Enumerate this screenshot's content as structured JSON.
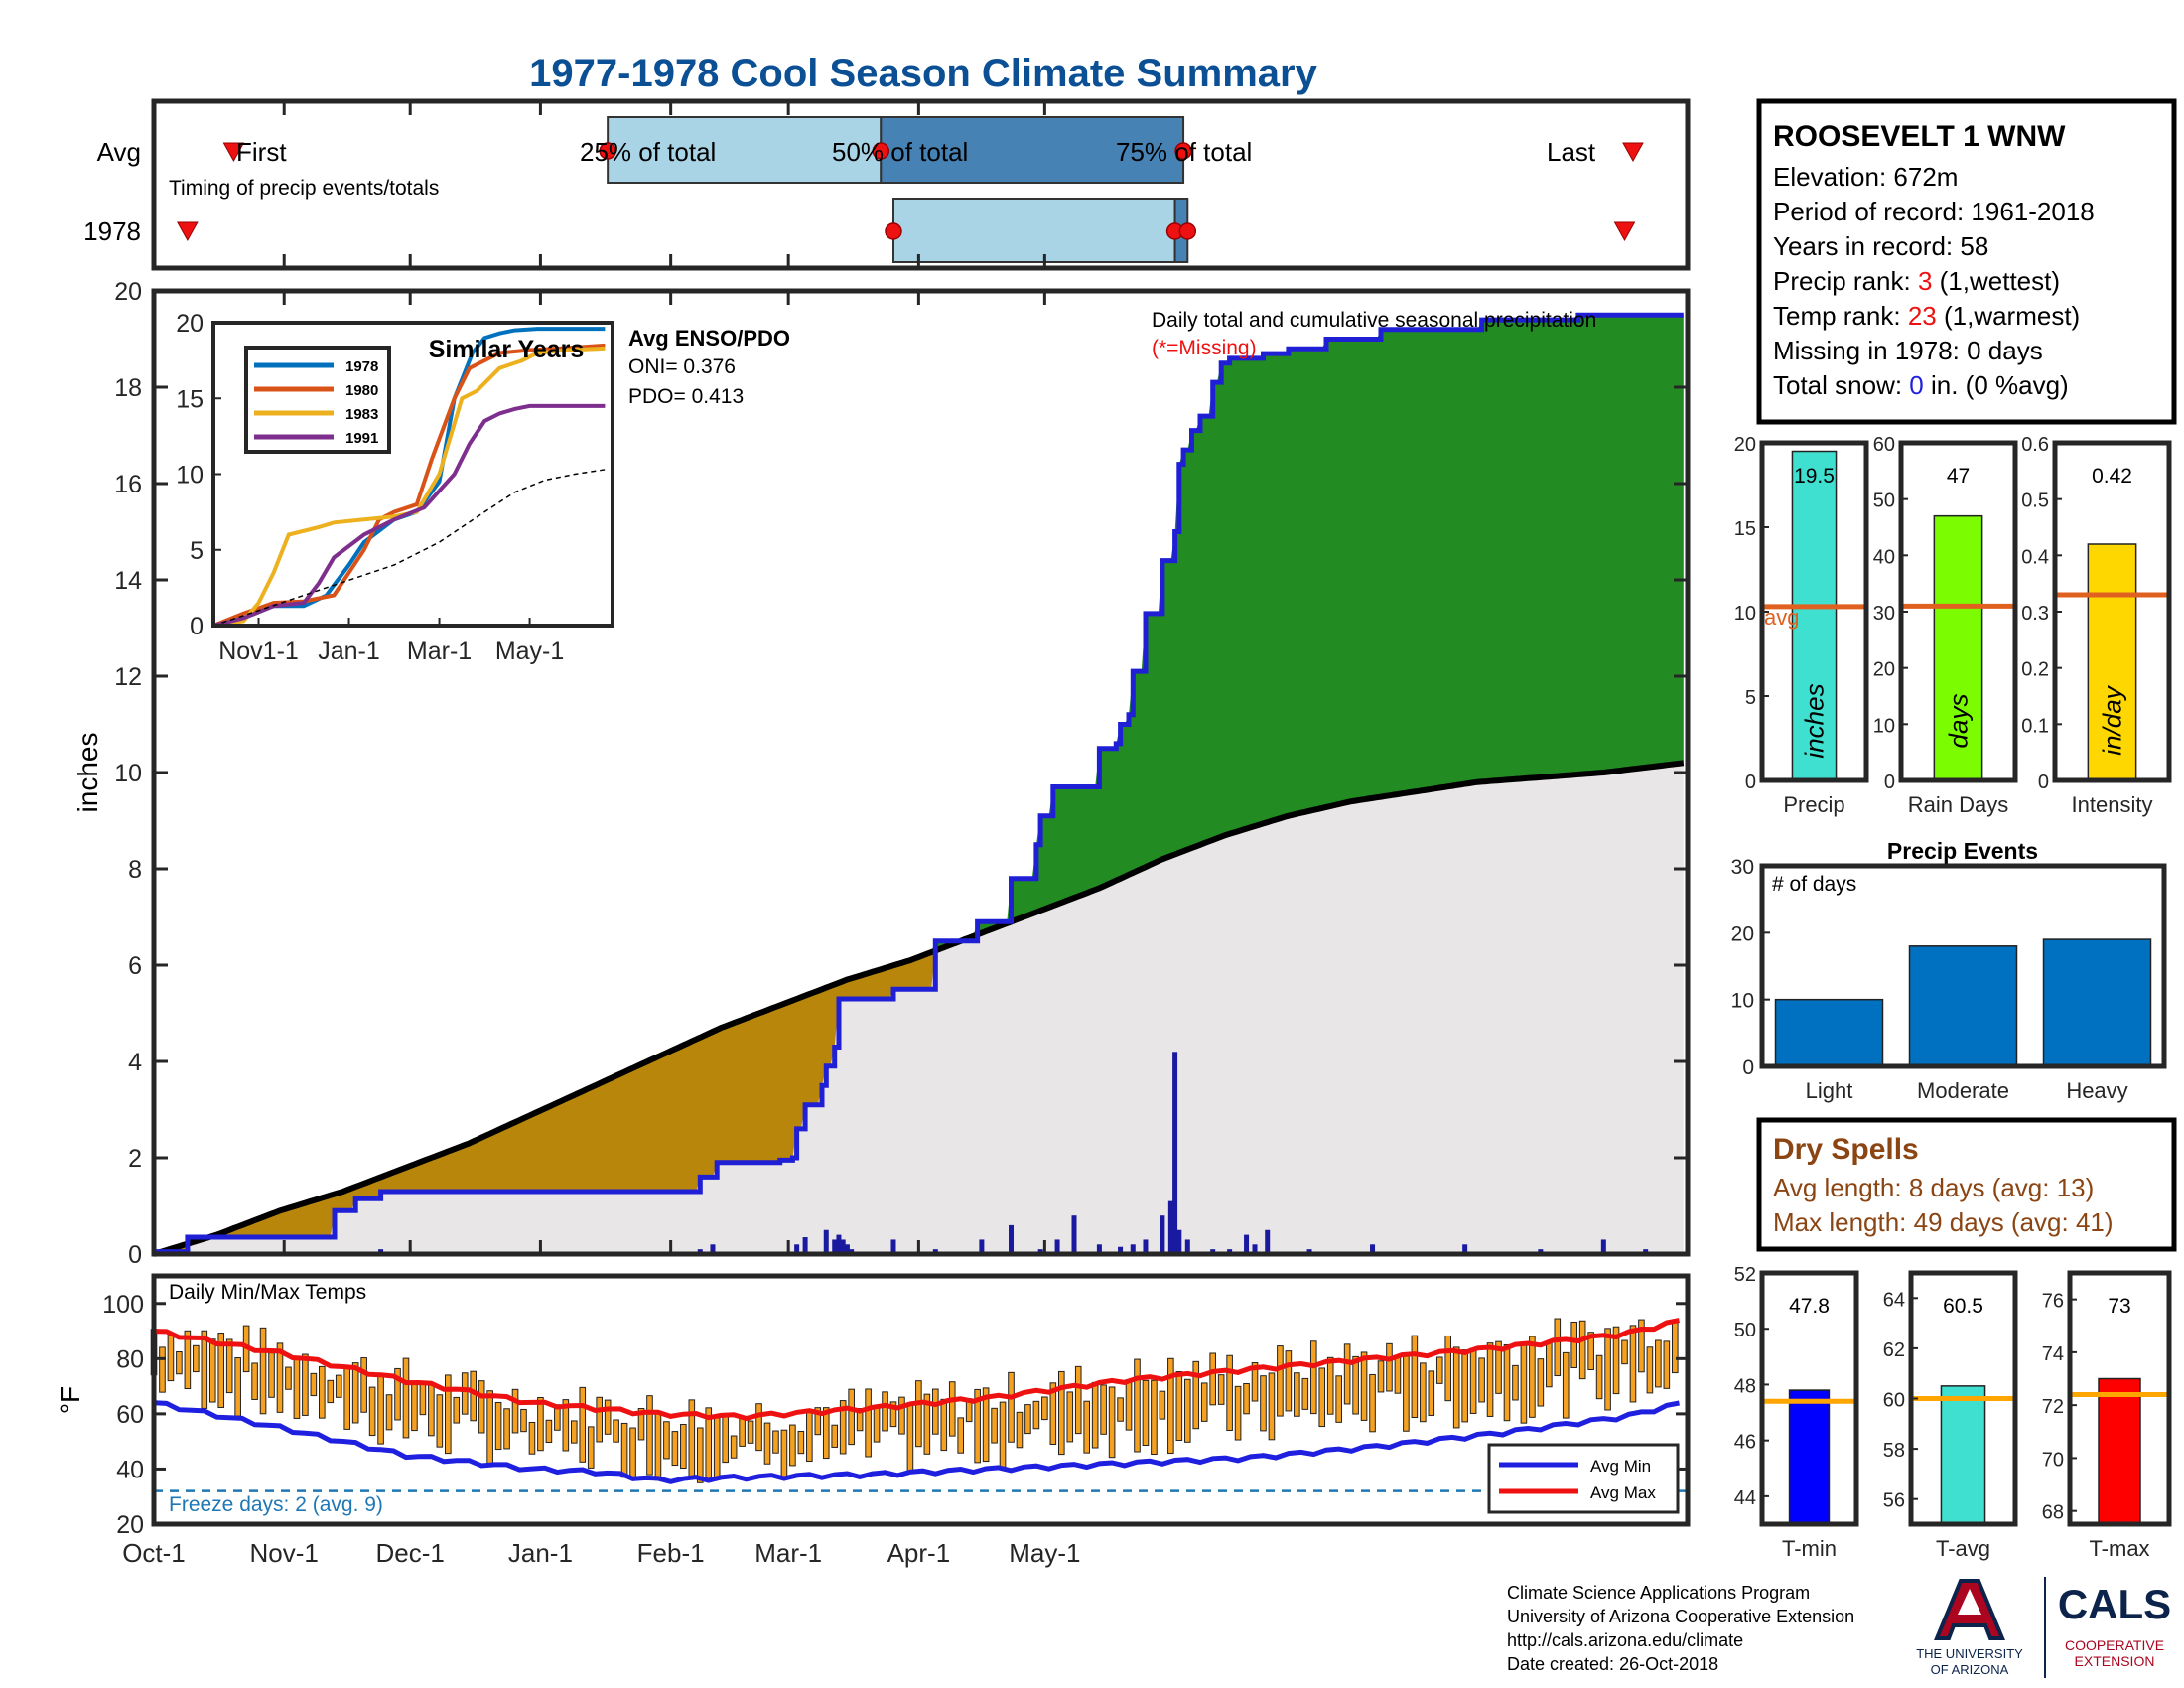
{
  "title": "1977-1978 Cool Season Climate Summary",
  "colors": {
    "title": "#0b4f94",
    "cum_line": "#1f1fd6",
    "above_avg": "#228b22",
    "below_avg": "#b8860b",
    "normal_fill": "#e8e6e6",
    "daily_bar": "#1a1aa0",
    "temp_bar": "#f4a020",
    "avg_min": "#1f1fe0",
    "avg_max": "#ee1111",
    "q_light": "#a8d4e6",
    "q_dark": "#4682b4",
    "bar_blue": "#0070c0"
  },
  "timing": {
    "row_avg": "Avg",
    "row_year": "1978",
    "caption": "Timing of precip events/totals",
    "first_label": "First",
    "q25_label": "25% of total",
    "q50_label": "50% of total",
    "q75_label": "75% of total",
    "last_label": "Last",
    "avg_days": {
      "first": 19,
      "q25": 108,
      "q50": 173,
      "q75": 245,
      "last": 352
    },
    "year_days": {
      "first": 8,
      "q25": 176,
      "q50": 243,
      "q75": 246,
      "last": 350
    }
  },
  "station": {
    "name": "ROOSEVELT 1 WNW",
    "elevation": "Elevation: 672m",
    "period": "Period of record: 1961-2018",
    "years": "Years in record: 58",
    "precip_rank_pre": "Precip rank: ",
    "precip_rank_val": "3",
    "precip_rank_post": " (1,wettest)",
    "temp_rank_pre": "Temp rank: ",
    "temp_rank_val": "23",
    "temp_rank_post": " (1,warmest)",
    "missing": "Missing in 1978: 0 days",
    "snow_pre": "Total snow: ",
    "snow_val": "0",
    "snow_post": " in. (0 %avg)"
  },
  "main": {
    "ylabel": "inches",
    "ylim": [
      0,
      20
    ],
    "yticks": [
      "0",
      "2",
      "4",
      "6",
      "8",
      "10",
      "12",
      "14",
      "16",
      "18",
      "20"
    ],
    "xticks": [
      "Oct-1",
      "Nov-1",
      "Dec-1",
      "Jan-1",
      "Feb-1",
      "Mar-1",
      "Apr-1",
      "May-1"
    ],
    "legend_title": "Daily total and cumulative seasonal precipitation",
    "missing_note": "(*=Missing)",
    "enso_title": "Avg ENSO/PDO",
    "oni": "ONI= 0.376",
    "pdo": "PDO= 0.413"
  },
  "inset": {
    "title": "Similar Years",
    "yticks": [
      "0",
      "5",
      "10",
      "15",
      "20"
    ],
    "xticks": [
      "Nov1-1",
      "Jan-1",
      "Mar-1",
      "May-1"
    ]
  },
  "temps": {
    "ylabel": "°F",
    "title": "Daily Min/Max Temps",
    "yticks": [
      "20",
      "40",
      "60",
      "80",
      "100"
    ],
    "freeze_note": "Freeze days: 2 (avg. 9)",
    "legend_min": "Avg Min",
    "legend_max": "Avg Max"
  },
  "stat_bars": [
    {
      "label": "Precip",
      "value_label": "19.5",
      "unit": "inches",
      "avg_label": "avg",
      "ticks": [
        "0",
        "5",
        "10",
        "15",
        "20"
      ]
    },
    {
      "label": "Rain Days",
      "value_label": "47",
      "unit": "days",
      "ticks": [
        "0",
        "10",
        "20",
        "30",
        "40",
        "50",
        "60"
      ]
    },
    {
      "label": "Intensity",
      "value_label": "0.42",
      "unit": "in/day",
      "ticks": [
        "0",
        "0.1",
        "0.2",
        "0.3",
        "0.4",
        "0.5",
        "0.6"
      ]
    }
  ],
  "events": {
    "title": "Precip Events",
    "ylabel": "# of days",
    "ticks": [
      "0",
      "10",
      "20",
      "30"
    ],
    "categories": [
      "Light",
      "Moderate",
      "Heavy"
    ]
  },
  "dry_spells": {
    "title": "Dry Spells",
    "avg": "Avg length: 8 days (avg: 13)",
    "max": "Max length: 49 days (avg: 41)"
  },
  "temp_bars": [
    {
      "label": "T-min",
      "value_label": "47.8",
      "ticks": [
        "44",
        "46",
        "48",
        "50",
        "52"
      ]
    },
    {
      "label": "T-avg",
      "value_label": "60.5",
      "ticks": [
        "56",
        "58",
        "60",
        "62",
        "64"
      ]
    },
    {
      "label": "T-max",
      "value_label": "73",
      "ticks": [
        "68",
        "70",
        "72",
        "74",
        "76"
      ]
    }
  ],
  "footer": {
    "line1": "Climate Science Applications Program",
    "line2": "University of Arizona Cooperative Extension",
    "line3": "http://cals.arizona.edu/climate",
    "line4": " Date created: 26-Oct-2018",
    "ua_logo_text": "THE UNIVERSITY OF ARIZONA",
    "cals_logo_text": "CALS COOPERATIVE EXTENSION"
  },
  "chart_data": [
    {
      "type": "area",
      "title": "Daily total and cumulative seasonal precipitation",
      "ylabel": "inches",
      "ylim": [
        0,
        20
      ],
      "x_unit": "days since Oct-1",
      "xlim": [
        0,
        365
      ],
      "series": [
        {
          "name": "1978 cumulative",
          "x": [
            0,
            7,
            8,
            42,
            43,
            47,
            48,
            53,
            54,
            129,
            130,
            133,
            134,
            136,
            140,
            149,
            152,
            153,
            155,
            159,
            160,
            162,
            163,
            176,
            178,
            182,
            185,
            186,
            196,
            197,
            204,
            210,
            211,
            214,
            215,
            218,
            225,
            229,
            230,
            232,
            233,
            236,
            240,
            243,
            244,
            245,
            247,
            249,
            252,
            254,
            256,
            262,
            264,
            268,
            270,
            279,
            292,
            316,
            339,
            364
          ],
          "y": [
            0.05,
            0.05,
            0.35,
            0.35,
            0.9,
            0.9,
            1.15,
            1.15,
            1.3,
            1.3,
            1.6,
            1.6,
            1.9,
            1.9,
            1.9,
            1.95,
            2.0,
            2.6,
            3.1,
            3.5,
            3.9,
            4.3,
            5.3,
            5.5,
            5.5,
            5.5,
            5.5,
            6.5,
            6.9,
            6.9,
            7.8,
            8.5,
            9.1,
            9.7,
            9.7,
            9.7,
            10.5,
            10.6,
            11.0,
            11.2,
            12.1,
            13.3,
            14.4,
            15.0,
            16.4,
            16.7,
            17.1,
            17.4,
            18.1,
            18.5,
            18.6,
            18.6,
            18.7,
            18.7,
            18.8,
            19.0,
            19.2,
            19.4,
            19.5,
            19.5
          ]
        },
        {
          "name": "Average cumulative",
          "x": [
            0,
            15,
            30,
            45,
            60,
            75,
            90,
            105,
            120,
            135,
            150,
            165,
            180,
            195,
            210,
            225,
            240,
            255,
            270,
            285,
            300,
            315,
            330,
            345,
            364
          ],
          "y": [
            0.0,
            0.4,
            0.9,
            1.3,
            1.8,
            2.3,
            2.9,
            3.5,
            4.1,
            4.7,
            5.2,
            5.7,
            6.1,
            6.6,
            7.1,
            7.6,
            8.2,
            8.7,
            9.1,
            9.4,
            9.6,
            9.8,
            9.9,
            10.0,
            10.2
          ]
        },
        {
          "name": "Daily precip",
          "x": [
            8,
            48,
            54,
            130,
            133,
            153,
            155,
            160,
            162,
            163,
            164,
            165,
            166,
            176,
            186,
            197,
            204,
            211,
            215,
            219,
            225,
            230,
            233,
            236,
            240,
            242,
            243,
            244,
            246,
            252,
            256,
            260,
            262,
            265,
            275,
            290,
            312,
            330,
            345,
            355
          ],
          "y": [
            0.1,
            0.05,
            0.1,
            0.1,
            0.2,
            0.2,
            0.35,
            0.5,
            0.3,
            0.4,
            0.3,
            0.2,
            0.1,
            0.3,
            0.1,
            0.3,
            0.6,
            0.1,
            0.3,
            0.8,
            0.2,
            0.15,
            0.2,
            0.3,
            0.8,
            1.1,
            4.2,
            0.5,
            0.3,
            0.1,
            0.1,
            0.4,
            0.2,
            0.5,
            0.1,
            0.2,
            0.2,
            0.1,
            0.3,
            0.1
          ]
        }
      ]
    },
    {
      "type": "line",
      "title": "Similar Years",
      "ylim": [
        0,
        20
      ],
      "series": [
        {
          "name": "1978",
          "x": [
            0,
            20,
            40,
            60,
            75,
            90,
            100,
            120,
            135,
            150,
            160,
            172,
            180,
            190,
            200,
            215,
            235,
            260
          ],
          "y": [
            0,
            0.5,
            1.3,
            1.3,
            2,
            4,
            5.5,
            7,
            7.5,
            9.5,
            15,
            18,
            19,
            19.3,
            19.5,
            19.6,
            19.6,
            19.6
          ]
        },
        {
          "name": "1980",
          "x": [
            0,
            20,
            40,
            60,
            80,
            100,
            110,
            120,
            135,
            145,
            160,
            170,
            180,
            190,
            210,
            230,
            260
          ],
          "y": [
            0,
            0.8,
            1.5,
            1.6,
            2,
            5,
            7,
            7.5,
            8,
            11,
            15,
            17,
            17.5,
            18,
            18.2,
            18.3,
            18.5
          ]
        },
        {
          "name": "1983",
          "x": [
            0,
            20,
            30,
            40,
            50,
            70,
            80,
            100,
            120,
            135,
            150,
            165,
            175,
            180,
            190,
            205,
            215,
            235,
            260
          ],
          "y": [
            0,
            0.3,
            1.5,
            3.5,
            6,
            6.5,
            6.8,
            7,
            7.2,
            7.5,
            10,
            15,
            15.5,
            16,
            17,
            17.5,
            18,
            18.2,
            18.3
          ]
        },
        {
          "name": "1991",
          "x": [
            0,
            20,
            40,
            60,
            70,
            80,
            100,
            120,
            140,
            160,
            170,
            180,
            190,
            200,
            210,
            230,
            260
          ],
          "y": [
            0,
            0.5,
            1.3,
            1.5,
            2.8,
            4.5,
            6,
            7,
            7.8,
            10,
            12,
            13.5,
            14,
            14.3,
            14.5,
            14.5,
            14.5
          ]
        },
        {
          "name": "average",
          "x": [
            0,
            30,
            60,
            90,
            120,
            150,
            180,
            200,
            220,
            240,
            260
          ],
          "y": [
            0,
            1,
            2,
            3,
            4,
            5.5,
            7.5,
            8.8,
            9.6,
            10,
            10.3
          ]
        }
      ]
    },
    {
      "type": "bar",
      "title": "Daily Min/Max Temps",
      "ylim": [
        20,
        110
      ],
      "series": [
        {
          "name": "Avg Min",
          "x": [
            0,
            30,
            60,
            90,
            105,
            120,
            140,
            170,
            200,
            230,
            260,
            290,
            320,
            350,
            364
          ],
          "y": [
            64,
            55,
            45,
            40,
            39,
            36,
            37,
            38,
            40,
            42,
            44,
            48,
            53,
            59,
            64
          ]
        },
        {
          "name": "Avg Max",
          "x": [
            0,
            30,
            60,
            90,
            105,
            120,
            140,
            170,
            200,
            230,
            260,
            290,
            320,
            350,
            364
          ],
          "y": [
            90,
            82,
            72,
            64,
            62,
            60,
            59,
            62,
            66,
            72,
            76,
            80,
            84,
            89,
            94
          ]
        }
      ]
    },
    {
      "type": "bar",
      "title": "Precip Events",
      "ylabel": "# of days",
      "ylim": [
        0,
        30
      ],
      "categories": [
        "Light",
        "Moderate",
        "Heavy"
      ],
      "values": [
        10,
        18,
        19
      ]
    },
    {
      "type": "bar",
      "categories": [
        "Precip",
        "Rain Days",
        "Intensity"
      ],
      "values": [
        19.5,
        47,
        0.42
      ],
      "averages": [
        10.3,
        31,
        0.33
      ]
    },
    {
      "type": "bar",
      "categories": [
        "T-min",
        "T-avg",
        "T-max"
      ],
      "values": [
        47.8,
        60.5,
        73
      ],
      "averages": [
        47.4,
        60.0,
        72.4
      ]
    }
  ]
}
